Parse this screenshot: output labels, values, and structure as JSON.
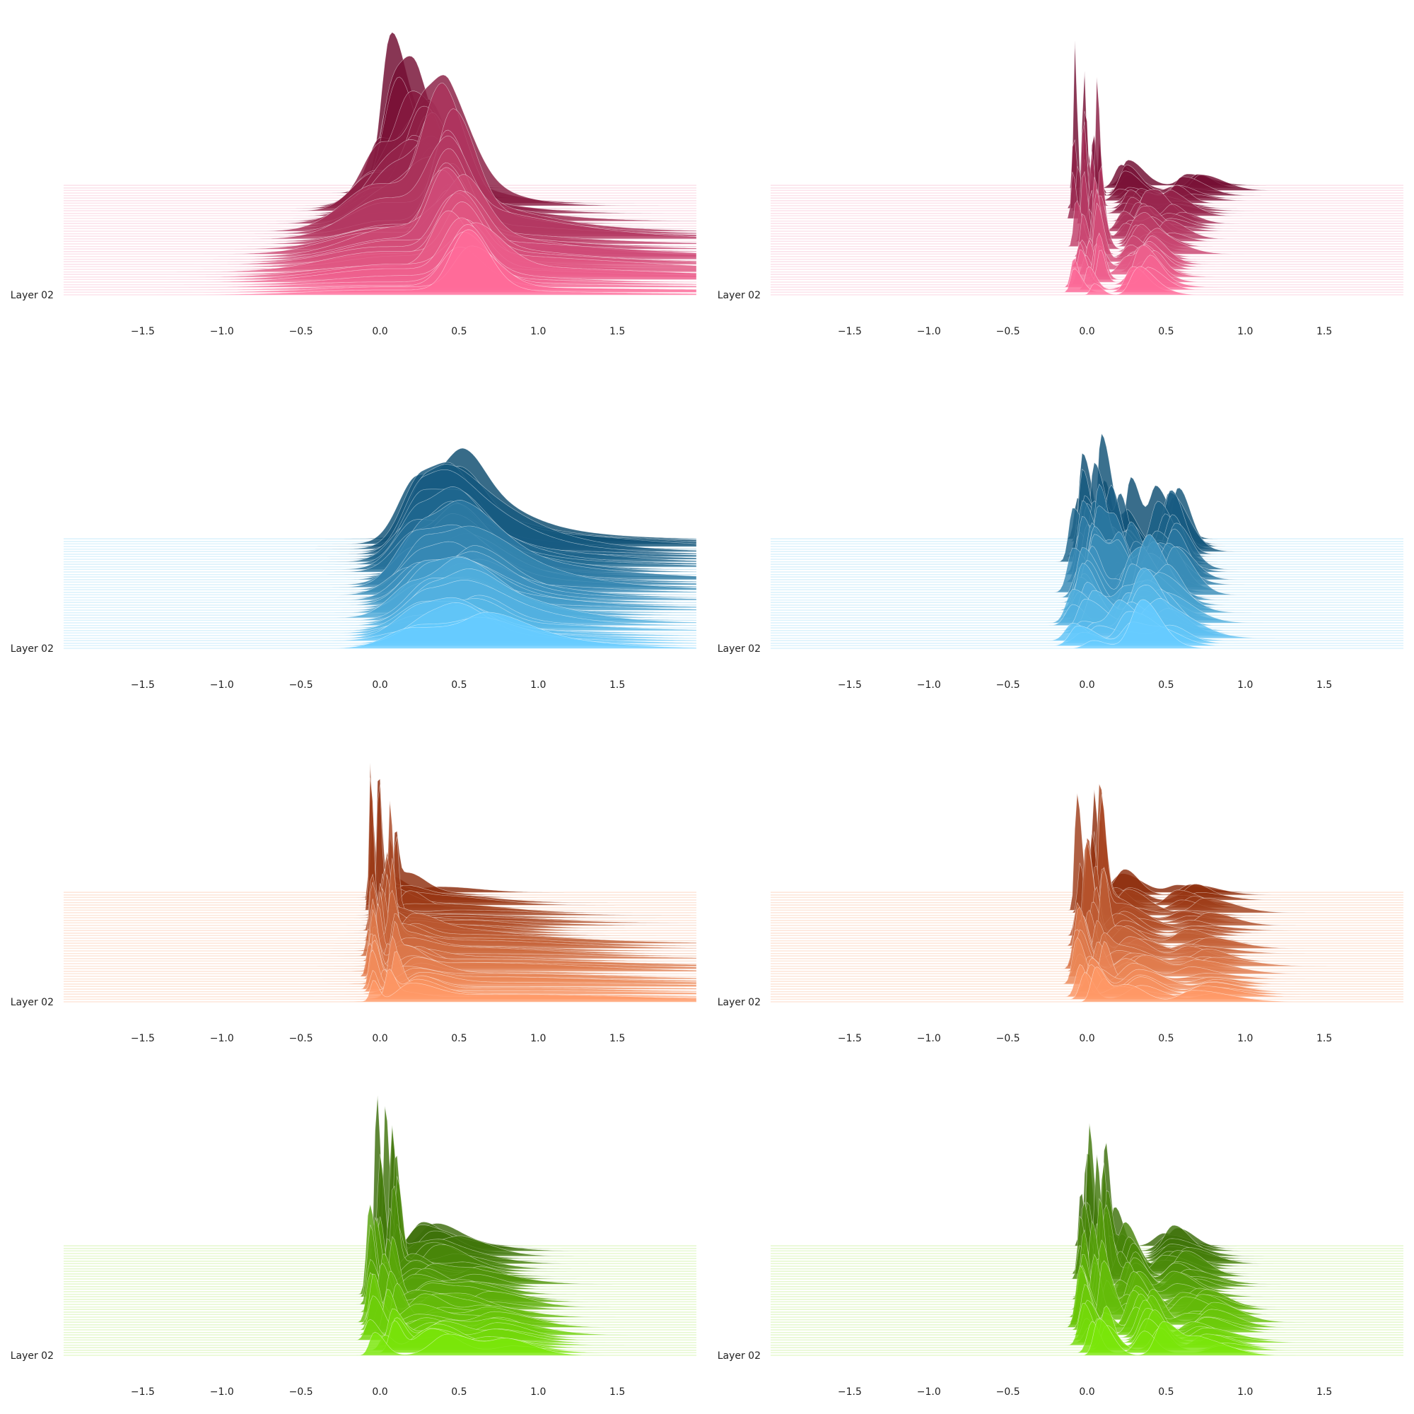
{
  "chart_data": [
    {
      "type": "ridgeline",
      "row_label": "Layer 02",
      "colors": {
        "dark": "#6e0a2e",
        "light": "#ff6b9a",
        "band": "#fbd3e1"
      },
      "xlim": [
        -2,
        2
      ],
      "x_ticks": [
        "−1.5",
        "−1.0",
        "−0.5",
        "0.0",
        "0.5",
        "1.0",
        "1.5"
      ],
      "x_tick_values": [
        -1.5,
        -1.0,
        -0.5,
        0.0,
        0.5,
        1.0,
        1.5
      ],
      "n_ridges": 44,
      "peaks": [
        [
          0.06,
          0.05,
          1.0,
          0.05,
          0.45,
          0.1,
          0.9
        ],
        [
          0.32,
          0.08,
          0.7,
          0.55,
          0.1,
          0.6,
          0.25
        ],
        [
          0.16,
          0.07,
          0.8,
          0.6,
          0.12,
          0.4,
          0.2
        ]
      ]
    },
    {
      "type": "ridgeline",
      "row_label": "Layer 02",
      "colors": {
        "dark": "#6e0a2e",
        "light": "#ff6b9a",
        "band": "#fbd3e1"
      },
      "xlim": [
        -2,
        2
      ],
      "x_ticks": [
        "−1.5",
        "−1.0",
        "−0.5",
        "0.0",
        "0.5",
        "1.0",
        "1.5"
      ],
      "x_tick_values": [
        -1.5,
        -1.0,
        -0.5,
        0.0,
        0.5,
        1.0,
        1.5
      ],
      "n_ridges": 44,
      "peaks": [
        [
          0.0,
          0.006,
          1.0,
          0.0,
          0.02,
          0.3,
          0.6
        ],
        [
          0.65,
          0.05,
          0.18,
          0.26,
          0.05,
          0.2,
          0.7
        ],
        [
          0.28,
          0.04,
          0.25,
          0.35,
          0.04,
          0.22,
          0.5
        ]
      ]
    },
    {
      "type": "ridgeline",
      "row_label": "Layer 02",
      "colors": {
        "dark": "#0b4a6e",
        "light": "#66ccff",
        "band": "#c8ebfb"
      },
      "xlim": [
        -2,
        2
      ],
      "x_ticks": [
        "−1.5",
        "−1.0",
        "−0.5",
        "0.0",
        "0.5",
        "1.0",
        "1.5"
      ],
      "x_tick_values": [
        -1.5,
        -1.0,
        -0.5,
        0.0,
        0.5,
        1.0,
        1.5
      ],
      "n_ridges": 44,
      "peaks": [
        [
          0.3,
          0.12,
          0.85,
          0.25,
          0.16,
          0.4,
          0.9
        ],
        [
          0.8,
          0.35,
          0.2,
          0.8,
          0.25,
          0.1,
          0.4
        ],
        [
          0.5,
          0.1,
          0.4,
          0.6,
          0.12,
          0.3,
          0.3
        ]
      ]
    },
    {
      "type": "ridgeline",
      "row_label": "Layer 02",
      "colors": {
        "dark": "#0b4a6e",
        "light": "#66ccff",
        "band": "#c8ebfb"
      },
      "xlim": [
        -2,
        2
      ],
      "x_ticks": [
        "−1.5",
        "−1.0",
        "−0.5",
        "0.0",
        "0.5",
        "1.0",
        "1.5"
      ],
      "x_tick_values": [
        -1.5,
        -1.0,
        -0.5,
        0.0,
        0.5,
        1.0,
        1.5
      ],
      "n_ridges": 44,
      "peaks": [
        [
          0.0,
          0.02,
          0.9,
          0.0,
          0.05,
          0.3,
          0.7
        ],
        [
          0.5,
          0.04,
          0.7,
          0.45,
          0.08,
          0.35,
          0.5
        ],
        [
          0.2,
          0.03,
          0.6,
          0.3,
          0.06,
          0.35,
          0.4
        ]
      ]
    },
    {
      "type": "ridgeline",
      "row_label": "Layer 02",
      "colors": {
        "dark": "#8a2a0a",
        "light": "#ff9966",
        "band": "#fcd9c6"
      },
      "xlim": [
        -2,
        2
      ],
      "x_ticks": [
        "−1.5",
        "−1.0",
        "−0.5",
        "0.0",
        "0.5",
        "1.0",
        "1.5"
      ],
      "x_tick_values": [
        -1.5,
        -1.0,
        -0.5,
        0.0,
        0.5,
        1.0,
        1.5
      ],
      "n_ridges": 44,
      "peaks": [
        [
          0.01,
          0.008,
          1.0,
          0.01,
          0.02,
          0.3,
          0.5
        ],
        [
          0.3,
          0.1,
          0.12,
          0.8,
          0.4,
          0.12,
          0.6
        ],
        [
          0.1,
          0.05,
          0.2,
          0.2,
          0.08,
          0.25,
          0.4
        ]
      ]
    },
    {
      "type": "ridgeline",
      "row_label": "Layer 02",
      "colors": {
        "dark": "#8a2a0a",
        "light": "#ff9966",
        "band": "#fcd9c6"
      },
      "xlim": [
        -2,
        2
      ],
      "x_ticks": [
        "−1.5",
        "−1.0",
        "−0.5",
        "0.0",
        "0.5",
        "1.0",
        "1.5"
      ],
      "x_tick_values": [
        -1.5,
        -1.0,
        -0.5,
        0.0,
        0.5,
        1.0,
        1.5
      ],
      "n_ridges": 44,
      "peaks": [
        [
          0.02,
          0.01,
          1.0,
          0.02,
          0.03,
          0.35,
          0.5
        ],
        [
          0.65,
          0.06,
          0.15,
          0.75,
          0.08,
          0.15,
          0.6
        ],
        [
          0.2,
          0.06,
          0.25,
          0.3,
          0.08,
          0.25,
          0.4
        ]
      ]
    },
    {
      "type": "ridgeline",
      "row_label": "Layer 02",
      "colors": {
        "dark": "#3a6a0a",
        "light": "#7ae60a",
        "band": "#d7f5b5"
      },
      "xlim": [
        -2,
        2
      ],
      "x_ticks": [
        "−1.5",
        "−1.0",
        "−0.5",
        "0.0",
        "0.5",
        "1.0",
        "1.5"
      ],
      "x_tick_values": [
        -1.5,
        -1.0,
        -0.5,
        0.0,
        0.5,
        1.0,
        1.5
      ],
      "n_ridges": 44,
      "peaks": [
        [
          0.02,
          0.01,
          1.0,
          0.02,
          0.03,
          0.4,
          0.5
        ],
        [
          0.45,
          0.1,
          0.15,
          0.8,
          0.1,
          0.2,
          0.5
        ],
        [
          0.25,
          0.07,
          0.25,
          0.35,
          0.1,
          0.3,
          0.4
        ]
      ]
    },
    {
      "type": "ridgeline",
      "row_label": "Layer 02",
      "colors": {
        "dark": "#3a6a0a",
        "light": "#7ae60a",
        "band": "#d7f5b5"
      },
      "xlim": [
        -2,
        2
      ],
      "x_ticks": [
        "−1.5",
        "−1.0",
        "−0.5",
        "0.0",
        "0.5",
        "1.0",
        "1.5"
      ],
      "x_tick_values": [
        -1.5,
        -1.0,
        -0.5,
        0.0,
        0.5,
        1.0,
        1.5
      ],
      "n_ridges": 44,
      "peaks": [
        [
          0.04,
          0.01,
          1.0,
          0.04,
          0.03,
          0.4,
          0.6
        ],
        [
          0.5,
          0.06,
          0.3,
          0.8,
          0.07,
          0.2,
          0.6
        ],
        [
          0.12,
          0.03,
          0.4,
          0.45,
          0.05,
          0.4,
          0.4
        ]
      ]
    }
  ]
}
